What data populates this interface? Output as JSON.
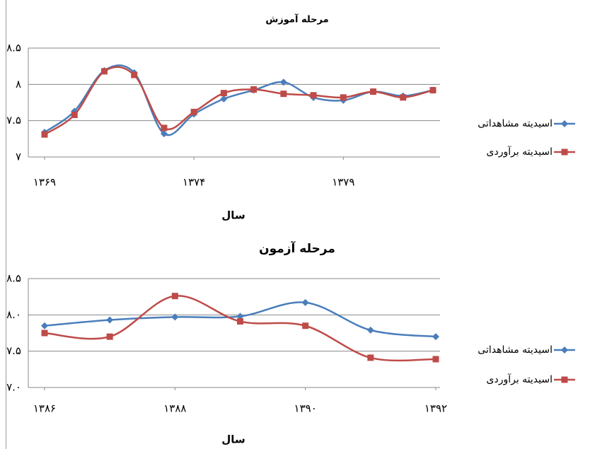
{
  "chart_data": [
    {
      "type": "line",
      "title": "مرحله آموزش",
      "x_label": "سال",
      "x": [
        1369,
        1370,
        1371,
        1372,
        1373,
        1374,
        1375,
        1376,
        1377,
        1378,
        1379,
        1380,
        1381,
        1382
      ],
      "series": [
        {
          "name": "اسیدیته مشاهداتی",
          "color": "#4a7ebb",
          "marker": "diamond",
          "values": [
            7.34,
            7.63,
            8.19,
            8.16,
            7.32,
            7.59,
            7.8,
            7.92,
            8.03,
            7.82,
            7.78,
            7.9,
            7.84,
            7.92
          ]
        },
        {
          "name": "اسیدیته برآوردی",
          "color": "#be4b48",
          "marker": "square",
          "values": [
            7.31,
            7.58,
            8.18,
            8.13,
            7.4,
            7.62,
            7.88,
            7.93,
            7.87,
            7.85,
            7.82,
            7.9,
            7.82,
            7.92
          ]
        }
      ],
      "xlim": [
        1369,
        1382
      ],
      "xticks": [
        {
          "value": 1369,
          "label": "۱۳۶۹"
        },
        {
          "value": 1374,
          "label": "۱۳۷۴"
        },
        {
          "value": 1379,
          "label": "۱۳۷۹"
        }
      ],
      "ylim": [
        7,
        8.5
      ],
      "yticks": [
        {
          "value": 7,
          "label": "۷"
        },
        {
          "value": 7.5,
          "label": "۷.۵"
        },
        {
          "value": 8,
          "label": "۸"
        },
        {
          "value": 8.5,
          "label": "۸.۵"
        }
      ],
      "grid": true,
      "legend": "right"
    },
    {
      "type": "line",
      "title": "مرحله آزمون",
      "x_label": "سال",
      "x": [
        1386,
        1387,
        1388,
        1389,
        1390,
        1391,
        1392
      ],
      "series": [
        {
          "name": "اسیدیته مشاهداتی",
          "color": "#4a7ebb",
          "marker": "diamond",
          "values": [
            7.85,
            7.93,
            7.97,
            7.98,
            8.17,
            7.79,
            7.7
          ]
        },
        {
          "name": "اسیدیته برآوردی",
          "color": "#be4b48",
          "marker": "square",
          "values": [
            7.75,
            7.7,
            8.26,
            7.91,
            7.85,
            7.41,
            7.39
          ]
        }
      ],
      "xlim": [
        1386,
        1392
      ],
      "xticks": [
        {
          "value": 1386,
          "label": "۱۳۸۶"
        },
        {
          "value": 1388,
          "label": "۱۳۸۸"
        },
        {
          "value": 1390,
          "label": "۱۳۹۰"
        },
        {
          "value": 1392,
          "label": "۱۳۹۲"
        }
      ],
      "ylim": [
        7,
        8.5
      ],
      "yticks": [
        {
          "value": 7,
          "label": "۷.۰"
        },
        {
          "value": 7.5,
          "label": "۷.۵"
        },
        {
          "value": 8,
          "label": "۸.۰"
        },
        {
          "value": 8.5,
          "label": "۸.۵"
        }
      ],
      "grid": true,
      "legend": "right"
    }
  ]
}
